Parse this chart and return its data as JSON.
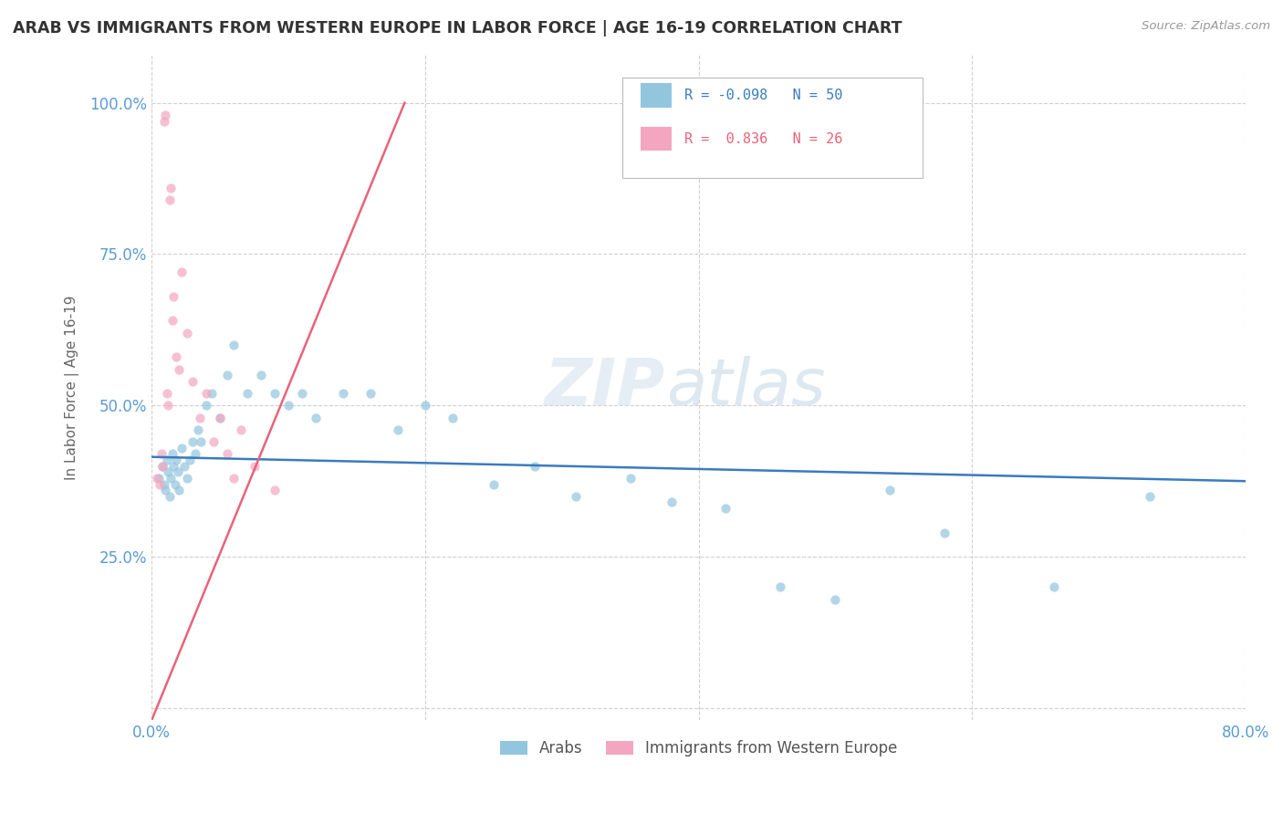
{
  "title": "ARAB VS IMMIGRANTS FROM WESTERN EUROPE IN LABOR FORCE | AGE 16-19 CORRELATION CHART",
  "source": "Source: ZipAtlas.com",
  "ylabel": "In Labor Force | Age 16-19",
  "xlim": [
    0.0,
    0.8
  ],
  "ylim": [
    -0.02,
    1.08
  ],
  "x_ticks": [
    0.0,
    0.2,
    0.4,
    0.6,
    0.8
  ],
  "x_tick_labels": [
    "0.0%",
    "",
    "",
    "",
    "80.0%"
  ],
  "y_ticks": [
    0.0,
    0.25,
    0.5,
    0.75,
    1.0
  ],
  "y_tick_labels": [
    "",
    "25.0%",
    "50.0%",
    "75.0%",
    "100.0%"
  ],
  "watermark_zip": "ZIP",
  "watermark_atlas": "atlas",
  "arab_color": "#92c5de",
  "imm_color": "#f4a6c0",
  "arab_line_color": "#3a7bbf",
  "imm_line_color": "#e8637a",
  "grid_color": "#d0d0d0",
  "background_color": "#ffffff",
  "tick_color": "#5b9bd5",
  "arab_line_x0": 0.0,
  "arab_line_y0": 0.415,
  "arab_line_x1": 0.8,
  "arab_line_y1": 0.375,
  "imm_line_x0": 0.0,
  "imm_line_y0": -0.02,
  "imm_line_x1": 0.185,
  "imm_line_y1": 1.0,
  "arab_x": [
    0.005,
    0.008,
    0.009,
    0.01,
    0.011,
    0.012,
    0.013,
    0.014,
    0.015,
    0.016,
    0.017,
    0.018,
    0.019,
    0.02,
    0.022,
    0.024,
    0.026,
    0.028,
    0.03,
    0.032,
    0.034,
    0.036,
    0.04,
    0.044,
    0.05,
    0.055,
    0.06,
    0.07,
    0.08,
    0.09,
    0.1,
    0.11,
    0.12,
    0.14,
    0.16,
    0.18,
    0.2,
    0.22,
    0.25,
    0.28,
    0.31,
    0.35,
    0.38,
    0.42,
    0.46,
    0.5,
    0.54,
    0.58,
    0.66,
    0.73
  ],
  "arab_y": [
    0.38,
    0.4,
    0.37,
    0.36,
    0.41,
    0.39,
    0.35,
    0.38,
    0.42,
    0.4,
    0.37,
    0.41,
    0.39,
    0.36,
    0.43,
    0.4,
    0.38,
    0.41,
    0.44,
    0.42,
    0.46,
    0.44,
    0.5,
    0.52,
    0.48,
    0.55,
    0.6,
    0.52,
    0.55,
    0.52,
    0.5,
    0.52,
    0.48,
    0.52,
    0.52,
    0.46,
    0.5,
    0.48,
    0.37,
    0.4,
    0.35,
    0.38,
    0.34,
    0.33,
    0.2,
    0.18,
    0.36,
    0.29,
    0.2,
    0.35
  ],
  "imm_x": [
    0.004,
    0.006,
    0.007,
    0.008,
    0.009,
    0.01,
    0.011,
    0.012,
    0.013,
    0.014,
    0.015,
    0.016,
    0.018,
    0.02,
    0.022,
    0.026,
    0.03,
    0.035,
    0.04,
    0.045,
    0.05,
    0.055,
    0.06,
    0.065,
    0.075,
    0.09
  ],
  "imm_y": [
    0.38,
    0.37,
    0.42,
    0.4,
    0.97,
    0.98,
    0.52,
    0.5,
    0.84,
    0.86,
    0.64,
    0.68,
    0.58,
    0.56,
    0.72,
    0.62,
    0.54,
    0.48,
    0.52,
    0.44,
    0.48,
    0.42,
    0.38,
    0.46,
    0.4,
    0.36
  ]
}
